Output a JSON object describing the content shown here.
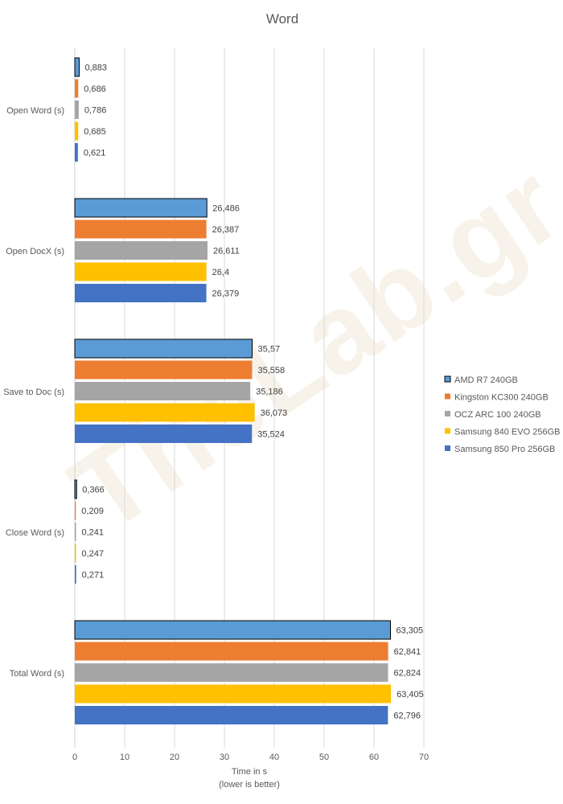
{
  "chart_data": {
    "type": "bar",
    "orientation": "horizontal",
    "title": "Word",
    "xlabel_lines": [
      "Time in s",
      "(lower is better)"
    ],
    "xlim": [
      0,
      70
    ],
    "x_ticks": [
      "0",
      "10",
      "20",
      "30",
      "40",
      "50",
      "60",
      "70"
    ],
    "categories": [
      "Open Word (s)",
      "Open DocX (s)",
      "Save to Doc (s)",
      "Close Word (s)",
      "Total Word (s)"
    ],
    "series": [
      {
        "name": "AMD R7 240GB",
        "color": "#5b9bd5",
        "outlined": true,
        "values": [
          0.883,
          26.486,
          35.57,
          0.366,
          63.305
        ],
        "labels": [
          "0,883",
          "26,486",
          "35,57",
          "0,366",
          "63,305"
        ]
      },
      {
        "name": "Kingston KC300 240GB",
        "color": "#ed7d31",
        "values": [
          0.686,
          26.387,
          35.558,
          0.209,
          62.841
        ],
        "labels": [
          "0,686",
          "26,387",
          "35,558",
          "0,209",
          "62,841"
        ]
      },
      {
        "name": "OCZ ARC 100 240GB",
        "color": "#a5a5a5",
        "values": [
          0.786,
          26.611,
          35.186,
          0.241,
          62.824
        ],
        "labels": [
          "0,786",
          "26,611",
          "35,186",
          "0,241",
          "62,824"
        ]
      },
      {
        "name": "Samsung 840 EVO 256GB",
        "color": "#ffc000",
        "values": [
          0.685,
          26.4,
          36.073,
          0.247,
          63.405
        ],
        "labels": [
          "0,685",
          "26,4",
          "36,073",
          "0,247",
          "63,405"
        ]
      },
      {
        "name": "Samsung 850 Pro 256GB",
        "color": "#4472c4",
        "values": [
          0.621,
          26.379,
          35.524,
          0.271,
          62.796
        ],
        "labels": [
          "0,621",
          "26,379",
          "35,524",
          "0,271",
          "62,796"
        ]
      }
    ],
    "grid": true,
    "legend_position": "right"
  },
  "watermark": "TheLab.gr"
}
